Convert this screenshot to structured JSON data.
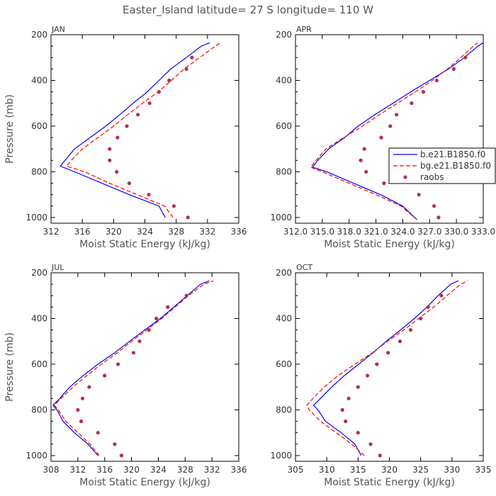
{
  "chart_data": {
    "suptitle": "Easter_Island   latitude= 27 S longitude= 110 W",
    "series_styles": [
      {
        "name": "b.e21.B1850.f0",
        "kind": "line",
        "color": "#0000ff",
        "dash": "none"
      },
      {
        "name": "bg.e21.B1850.f0",
        "kind": "line",
        "color": "#ff0000",
        "dash": "dashed"
      },
      {
        "name": "raobs",
        "kind": "dots",
        "color": "#b03050"
      }
    ],
    "panels": [
      {
        "type": "line",
        "title": "JAN",
        "xlabel": "Moist Static Energy (kJ/kg)",
        "ylabel": "Pressure (mb)",
        "xlim": [
          312,
          336
        ],
        "xticks": [
          312,
          316,
          320,
          324,
          328,
          332,
          336
        ],
        "xtick_labels": [
          "312",
          "316",
          "320",
          "324",
          "328",
          "332",
          "336"
        ],
        "ylim": [
          1025,
          200
        ],
        "yticks": [
          200,
          400,
          600,
          800,
          1000
        ],
        "pressure": [
          1000,
          950,
          900,
          850,
          800,
          775,
          750,
          700,
          650,
          600,
          550,
          500,
          450,
          400,
          350,
          300,
          250,
          235
        ],
        "model_blue": [
          326.6,
          325.8,
          322.0,
          318.5,
          315.0,
          313.2,
          313.8,
          315.0,
          317.0,
          319.0,
          320.8,
          322.5,
          324.3,
          325.8,
          327.3,
          329.3,
          331.2,
          332.3
        ],
        "model_red": [
          327.6,
          326.5,
          323.0,
          319.5,
          316.3,
          314.0,
          314.6,
          316.0,
          318.0,
          320.0,
          321.8,
          323.7,
          325.7,
          327.4,
          329.0,
          331.0,
          333.0,
          333.7
        ],
        "raobs_p": [
          1000,
          950,
          900,
          850,
          800,
          750,
          700,
          650,
          600,
          550,
          500,
          450,
          400,
          350,
          300
        ],
        "raobs_x": [
          329.5,
          327.7,
          324.5,
          322.0,
          320.4,
          319.5,
          319.5,
          320.5,
          321.7,
          323.1,
          324.6,
          325.8,
          327.1,
          329.3,
          330.0
        ]
      },
      {
        "type": "line",
        "title": "APR",
        "xlabel": "Moist Static Energy (kJ/kg)",
        "ylabel": "",
        "xlim": [
          312.0,
          333.0
        ],
        "xticks": [
          312.0,
          315.0,
          318.0,
          321.0,
          324.0,
          327.0,
          330.0,
          333.0
        ],
        "xtick_labels": [
          "312.0",
          "315.0",
          "318.0",
          "321.0",
          "324.0",
          "327.0",
          "330.0",
          "333.0"
        ],
        "ylim": [
          1025,
          200
        ],
        "yticks": [
          200,
          400,
          600,
          800,
          1000
        ],
        "pressure": [
          1010,
          950,
          900,
          850,
          800,
          780,
          750,
          700,
          650,
          600,
          550,
          500,
          450,
          400,
          350,
          300,
          250,
          235
        ],
        "model_blue": [
          325.6,
          324.0,
          321.5,
          318.5,
          315.5,
          313.9,
          314.5,
          315.7,
          317.5,
          319.0,
          320.9,
          322.9,
          324.9,
          327.0,
          329.1,
          330.9,
          332.4,
          333.0
        ],
        "model_red": [
          325.6,
          323.8,
          321.0,
          318.0,
          315.0,
          313.7,
          314.3,
          315.4,
          317.4,
          319.5,
          321.4,
          323.4,
          325.4,
          327.3,
          329.0,
          330.5,
          331.9,
          332.4
        ],
        "raobs_p": [
          1000,
          950,
          900,
          850,
          800,
          750,
          700,
          650,
          600,
          550,
          500,
          450,
          400,
          350,
          300
        ],
        "raobs_x": [
          328.0,
          327.5,
          325.8,
          321.9,
          319.9,
          319.3,
          319.7,
          321.6,
          322.6,
          323.3,
          325.0,
          326.3,
          327.8,
          329.7,
          331.0
        ]
      },
      {
        "type": "line",
        "title": "JUL",
        "xlabel": "Moist Static Energy (kJ/kg)",
        "ylabel": "Pressure (mb)",
        "xlim": [
          308,
          336
        ],
        "xticks": [
          308,
          312,
          316,
          320,
          324,
          328,
          332,
          336
        ],
        "xtick_labels": [
          "308",
          "312",
          "316",
          "320",
          "324",
          "328",
          "332",
          "336"
        ],
        "ylim": [
          1025,
          200
        ],
        "yticks": [
          200,
          400,
          600,
          800,
          1000
        ],
        "pressure": [
          1000,
          950,
          900,
          850,
          800,
          780,
          750,
          700,
          650,
          600,
          550,
          500,
          450,
          400,
          350,
          300,
          250,
          235
        ],
        "model_blue": [
          315.0,
          313.5,
          311.5,
          309.8,
          308.9,
          308.3,
          309.3,
          310.8,
          312.8,
          315.0,
          317.5,
          319.7,
          322.0,
          324.3,
          326.3,
          328.3,
          330.3,
          331.6
        ],
        "model_red": [
          315.2,
          313.8,
          312.0,
          310.2,
          309.1,
          308.5,
          309.5,
          311.3,
          313.3,
          315.5,
          317.9,
          320.0,
          322.3,
          324.5,
          326.5,
          328.5,
          330.8,
          332.2
        ],
        "raobs_p": [
          1000,
          950,
          900,
          850,
          800,
          750,
          700,
          650,
          600,
          550,
          500,
          450,
          400,
          350,
          300
        ],
        "raobs_x": [
          318.5,
          317.5,
          315.0,
          312.5,
          312.0,
          312.7,
          313.7,
          316.0,
          318.0,
          320.3,
          321.2,
          322.6,
          323.7,
          325.4,
          328.2
        ]
      },
      {
        "type": "line",
        "title": "OCT",
        "xlabel": "Moist Static Energy (kJ/kg)",
        "ylabel": "",
        "xlim": [
          305,
          335
        ],
        "xticks": [
          305,
          310,
          315,
          320,
          325,
          330,
          335
        ],
        "xtick_labels": [
          "305",
          "310",
          "315",
          "320",
          "325",
          "330",
          "335"
        ],
        "ylim": [
          1025,
          200
        ],
        "yticks": [
          200,
          400,
          600,
          800,
          1000
        ],
        "pressure": [
          1000,
          950,
          900,
          850,
          800,
          780,
          750,
          700,
          650,
          600,
          550,
          500,
          450,
          400,
          350,
          300,
          250,
          235
        ],
        "model_blue": [
          315.5,
          314.5,
          312.3,
          309.8,
          308.6,
          307.9,
          309.0,
          310.8,
          312.8,
          315.1,
          317.4,
          319.5,
          321.8,
          324.0,
          326.0,
          327.8,
          329.8,
          331.0
        ],
        "model_red": [
          316.0,
          314.0,
          311.5,
          309.0,
          307.2,
          306.8,
          307.8,
          309.6,
          311.8,
          314.5,
          317.3,
          319.7,
          322.3,
          324.7,
          327.1,
          329.2,
          331.4,
          332.5
        ],
        "raobs_p": [
          1000,
          950,
          900,
          850,
          800,
          750,
          700,
          650,
          600,
          550,
          500,
          450,
          400,
          350,
          300
        ],
        "raobs_x": [
          318.5,
          317.0,
          315.0,
          313.0,
          312.5,
          313.5,
          315.0,
          316.5,
          318.0,
          319.8,
          321.7,
          323.4,
          325.0,
          326.2,
          328.3
        ]
      }
    ]
  }
}
